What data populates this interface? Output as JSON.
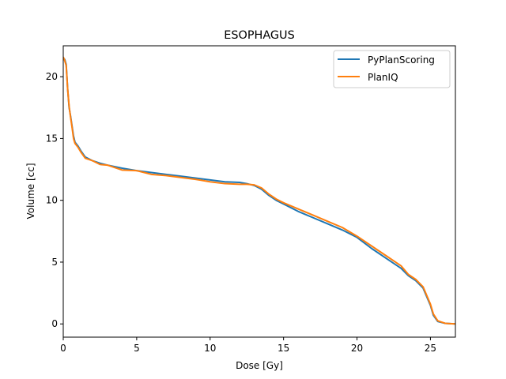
{
  "chart_data": {
    "type": "line",
    "title": "ESOPHAGUS",
    "xlabel": "Dose [Gy]",
    "ylabel": "Volume [cc]",
    "xlim": [
      0,
      26.7
    ],
    "ylim": [
      -1.07,
      22.5
    ],
    "xticks": [
      0,
      5,
      10,
      15,
      20,
      25
    ],
    "yticks": [
      0,
      5,
      10,
      15,
      20
    ],
    "grid": false,
    "legend_position": "top-right",
    "series": [
      {
        "name": "PyPlanScoring",
        "color": "#1f77b4",
        "x": [
          0,
          0.1,
          0.2,
          0.3,
          0.4,
          0.5,
          0.6,
          0.7,
          0.8,
          1.0,
          1.2,
          1.5,
          2.0,
          2.5,
          3.0,
          4.0,
          5.0,
          6.0,
          7.0,
          8.0,
          9.0,
          10.0,
          11.0,
          12.0,
          12.5,
          13.0,
          13.5,
          14.0,
          14.5,
          15.0,
          16.0,
          17.0,
          18.0,
          19.0,
          20.0,
          21.0,
          22.0,
          23.0,
          23.5,
          24.0,
          24.5,
          25.0,
          25.2,
          25.5,
          26.0,
          26.7
        ],
        "y": [
          21.5,
          21.4,
          21.0,
          19.0,
          17.5,
          16.8,
          16.0,
          15.2,
          14.7,
          14.4,
          14.0,
          13.5,
          13.2,
          13.0,
          12.85,
          12.6,
          12.4,
          12.25,
          12.1,
          11.95,
          11.8,
          11.65,
          11.5,
          11.45,
          11.35,
          11.2,
          10.9,
          10.4,
          10.0,
          9.7,
          9.1,
          8.6,
          8.1,
          7.6,
          7.0,
          6.1,
          5.3,
          4.5,
          3.9,
          3.5,
          2.9,
          1.5,
          0.7,
          0.2,
          0.05,
          0.0
        ]
      },
      {
        "name": "PlanIQ",
        "color": "#ff7f0e",
        "x": [
          0,
          0.1,
          0.2,
          0.3,
          0.4,
          0.5,
          0.6,
          0.7,
          0.8,
          1.0,
          1.2,
          1.5,
          2.0,
          2.5,
          3.0,
          4.0,
          5.0,
          6.0,
          7.0,
          8.0,
          9.0,
          10.0,
          11.0,
          12.0,
          12.5,
          13.0,
          13.5,
          14.0,
          14.5,
          15.0,
          16.0,
          17.0,
          18.0,
          19.0,
          20.0,
          21.0,
          22.0,
          23.0,
          23.5,
          24.0,
          24.5,
          25.0,
          25.2,
          25.5,
          26.0,
          26.7
        ],
        "y": [
          21.6,
          21.3,
          20.9,
          19.0,
          17.6,
          16.7,
          15.9,
          15.0,
          14.6,
          14.3,
          13.9,
          13.4,
          13.2,
          12.9,
          12.85,
          12.45,
          12.4,
          12.1,
          12.0,
          11.85,
          11.7,
          11.5,
          11.35,
          11.3,
          11.3,
          11.25,
          11.0,
          10.5,
          10.1,
          9.8,
          9.3,
          8.8,
          8.3,
          7.8,
          7.1,
          6.3,
          5.5,
          4.7,
          4.0,
          3.6,
          3.0,
          1.6,
          0.8,
          0.25,
          0.05,
          0.0
        ]
      }
    ]
  }
}
